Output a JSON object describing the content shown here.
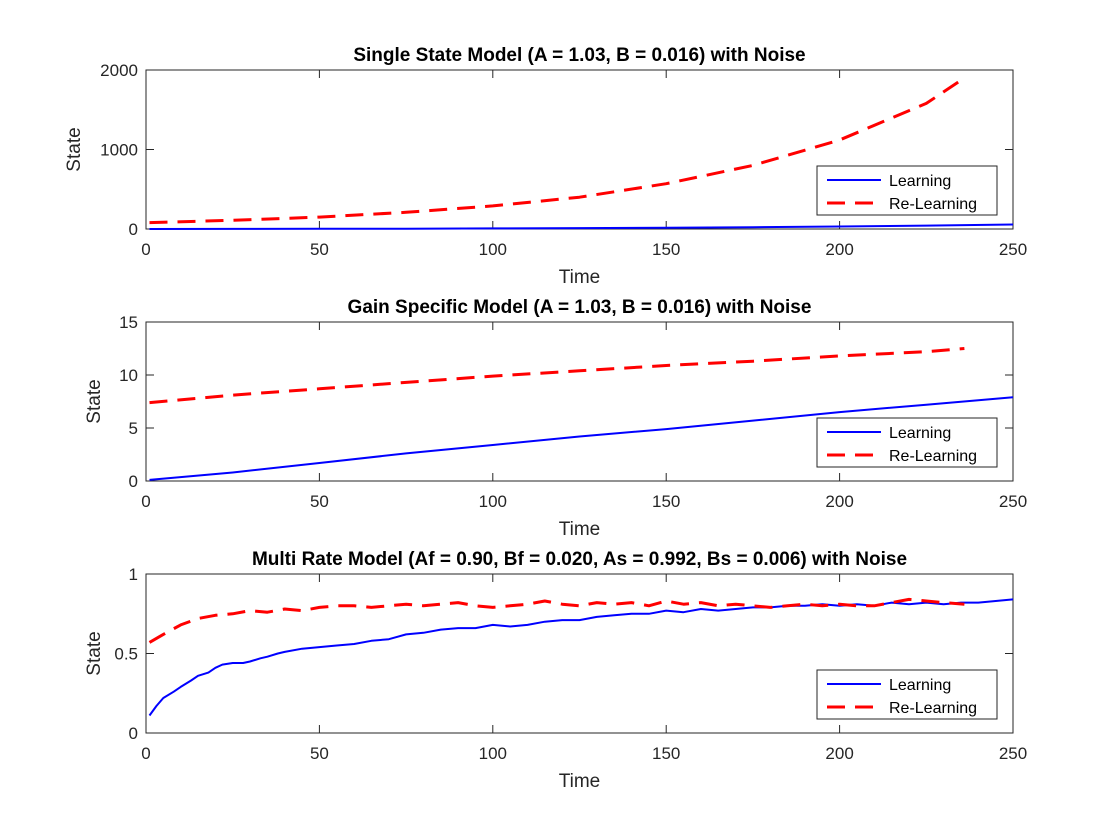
{
  "chart_data": [
    {
      "type": "line",
      "title": "Single State Model (A = 1.03, B = 0.016) with Noise",
      "xlabel": "Time",
      "ylabel": "State",
      "xlim": [
        0,
        250
      ],
      "ylim": [
        0,
        2000
      ],
      "xticks": [
        0,
        50,
        100,
        150,
        200,
        250
      ],
      "yticks": [
        0,
        1000,
        2000
      ],
      "legend": "bottom-right",
      "grid": false,
      "series": [
        {
          "name": "Learning",
          "color": "#0000ff",
          "style": "solid",
          "x": [
            1,
            25,
            50,
            75,
            100,
            125,
            150,
            175,
            200,
            225,
            250
          ],
          "y": [
            0,
            1,
            2,
            4,
            7,
            11,
            16,
            23,
            32,
            43,
            57
          ]
        },
        {
          "name": "Re-Learning",
          "color": "#ff0000",
          "style": "dashed",
          "x": [
            1,
            25,
            50,
            75,
            100,
            125,
            150,
            175,
            200,
            225,
            236
          ],
          "y": [
            80,
            110,
            150,
            210,
            290,
            400,
            570,
            800,
            1120,
            1580,
            1900
          ]
        }
      ]
    },
    {
      "type": "line",
      "title": "Gain Specific Model (A = 1.03, B = 0.016) with Noise",
      "xlabel": "Time",
      "ylabel": "State",
      "xlim": [
        0,
        250
      ],
      "ylim": [
        0,
        15
      ],
      "xticks": [
        0,
        50,
        100,
        150,
        200,
        250
      ],
      "yticks": [
        0,
        5,
        10,
        15
      ],
      "legend": "bottom-right",
      "grid": false,
      "series": [
        {
          "name": "Learning",
          "color": "#0000ff",
          "style": "solid",
          "x": [
            1,
            25,
            50,
            75,
            100,
            125,
            150,
            175,
            200,
            225,
            250
          ],
          "y": [
            0.1,
            0.8,
            1.7,
            2.6,
            3.4,
            4.2,
            4.9,
            5.7,
            6.5,
            7.2,
            7.9
          ]
        },
        {
          "name": "Re-Learning",
          "color": "#ff0000",
          "style": "dashed",
          "x": [
            1,
            25,
            50,
            75,
            100,
            125,
            150,
            175,
            200,
            225,
            236
          ],
          "y": [
            7.4,
            8.1,
            8.7,
            9.3,
            9.9,
            10.4,
            10.9,
            11.3,
            11.8,
            12.2,
            12.5
          ]
        }
      ]
    },
    {
      "type": "line",
      "title": "Multi Rate Model (Af = 0.90, Bf = 0.020, As = 0.992, Bs = 0.006) with Noise",
      "xlabel": "Time",
      "ylabel": "State",
      "xlim": [
        0,
        250
      ],
      "ylim": [
        0,
        1
      ],
      "xticks": [
        0,
        50,
        100,
        150,
        200,
        250
      ],
      "yticks": [
        0,
        0.5,
        1
      ],
      "legend": "bottom-right",
      "grid": false,
      "series": [
        {
          "name": "Learning",
          "color": "#0000ff",
          "style": "solid",
          "x": [
            1,
            3,
            5,
            8,
            10,
            13,
            15,
            18,
            20,
            22,
            25,
            28,
            30,
            33,
            35,
            38,
            40,
            45,
            50,
            55,
            60,
            65,
            70,
            75,
            80,
            85,
            90,
            95,
            100,
            105,
            110,
            115,
            120,
            125,
            130,
            135,
            140,
            145,
            150,
            155,
            160,
            165,
            170,
            175,
            180,
            185,
            190,
            195,
            200,
            205,
            210,
            215,
            220,
            225,
            230,
            235,
            240,
            245,
            250
          ],
          "y": [
            0.11,
            0.17,
            0.22,
            0.26,
            0.29,
            0.33,
            0.36,
            0.38,
            0.41,
            0.43,
            0.44,
            0.44,
            0.45,
            0.47,
            0.48,
            0.5,
            0.51,
            0.53,
            0.54,
            0.55,
            0.56,
            0.58,
            0.59,
            0.62,
            0.63,
            0.65,
            0.66,
            0.66,
            0.68,
            0.67,
            0.68,
            0.7,
            0.71,
            0.71,
            0.73,
            0.74,
            0.75,
            0.75,
            0.77,
            0.76,
            0.78,
            0.77,
            0.78,
            0.79,
            0.79,
            0.8,
            0.8,
            0.81,
            0.8,
            0.81,
            0.8,
            0.82,
            0.81,
            0.82,
            0.81,
            0.82,
            0.82,
            0.83,
            0.84
          ]
        },
        {
          "name": "Re-Learning",
          "color": "#ff0000",
          "style": "dashed",
          "x": [
            1,
            5,
            10,
            15,
            20,
            25,
            30,
            35,
            40,
            45,
            50,
            55,
            60,
            65,
            70,
            75,
            80,
            85,
            90,
            95,
            100,
            105,
            110,
            115,
            120,
            125,
            130,
            135,
            140,
            145,
            150,
            155,
            160,
            165,
            170,
            175,
            180,
            185,
            190,
            195,
            200,
            205,
            210,
            215,
            220,
            225,
            230,
            236
          ],
          "y": [
            0.57,
            0.62,
            0.68,
            0.72,
            0.74,
            0.75,
            0.77,
            0.76,
            0.78,
            0.77,
            0.79,
            0.8,
            0.8,
            0.79,
            0.8,
            0.81,
            0.8,
            0.81,
            0.82,
            0.8,
            0.79,
            0.8,
            0.81,
            0.83,
            0.81,
            0.8,
            0.82,
            0.81,
            0.82,
            0.8,
            0.83,
            0.81,
            0.82,
            0.8,
            0.81,
            0.8,
            0.79,
            0.8,
            0.81,
            0.8,
            0.81,
            0.8,
            0.8,
            0.82,
            0.84,
            0.83,
            0.82,
            0.81
          ]
        }
      ]
    }
  ]
}
